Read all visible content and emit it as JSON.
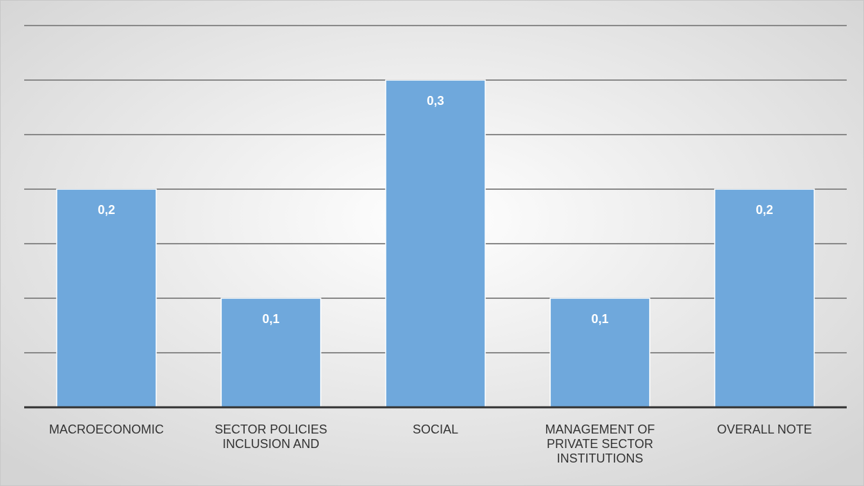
{
  "chart_data": {
    "type": "bar",
    "categories": [
      "MACROECONOMIC",
      "SECTOR POLICIES INCLUSION AND",
      "SOCIAL",
      "MANAGEMENT OF PRIVATE SECTOR INSTITUTIONS",
      "OVERALL NOTE"
    ],
    "values": [
      0.2,
      0.1,
      0.3,
      0.1,
      0.2
    ],
    "value_labels": [
      "0,2",
      "0,1",
      "0,3",
      "0,1",
      "0,2"
    ],
    "color": "#6fa8dc",
    "ylim": [
      0,
      0.35
    ],
    "yticks": [
      0,
      0.05,
      0.1,
      0.15,
      0.2,
      0.25,
      0.3,
      0.35
    ],
    "grid": true
  }
}
